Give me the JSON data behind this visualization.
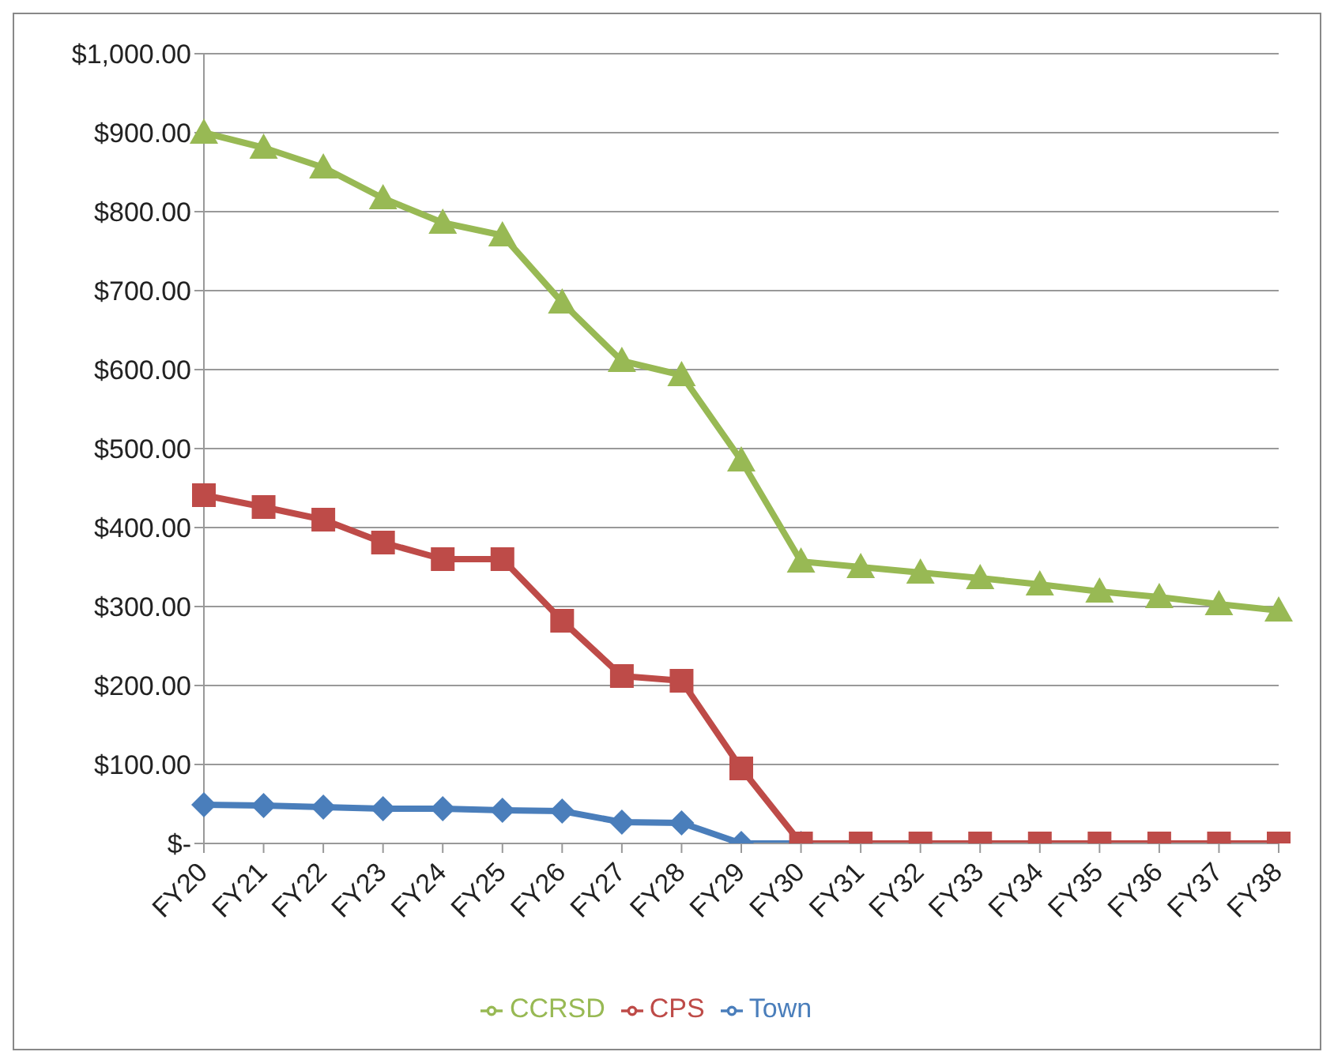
{
  "chart_data": {
    "type": "line",
    "categories": [
      "FY20",
      "FY21",
      "FY22",
      "FY23",
      "FY24",
      "FY25",
      "FY26",
      "FY27",
      "FY28",
      "FY29",
      "FY30",
      "FY31",
      "FY32",
      "FY33",
      "FY34",
      "FY35",
      "FY36",
      "FY37",
      "FY38"
    ],
    "series": [
      {
        "name": "Town",
        "color": "#4a7ebb",
        "marker": "diamond",
        "values": [
          49,
          48,
          46,
          44,
          44,
          42,
          41,
          27,
          26,
          0,
          0,
          null,
          null,
          null,
          null,
          null,
          null,
          null,
          null
        ]
      },
      {
        "name": "CPS",
        "color": "#be4b48",
        "marker": "square",
        "values": [
          441,
          426,
          410,
          381,
          360,
          360,
          282,
          212,
          206,
          95,
          0,
          0,
          0,
          0,
          0,
          0,
          0,
          0,
          0
        ]
      },
      {
        "name": "CCRSD",
        "color": "#98b954",
        "marker": "triangle",
        "values": [
          900,
          881,
          856,
          817,
          786,
          770,
          685,
          611,
          593,
          485,
          357,
          350,
          343,
          336,
          328,
          319,
          312,
          303,
          295
        ]
      }
    ],
    "ylim": [
      0,
      1000
    ],
    "yticks": [
      {
        "value": 0,
        "label": "$-"
      },
      {
        "value": 100,
        "label": "$100.00"
      },
      {
        "value": 200,
        "label": "$200.00"
      },
      {
        "value": 300,
        "label": "$300.00"
      },
      {
        "value": 400,
        "label": "$400.00"
      },
      {
        "value": 500,
        "label": "$500.00"
      },
      {
        "value": 600,
        "label": "$600.00"
      },
      {
        "value": 700,
        "label": "$700.00"
      },
      {
        "value": 800,
        "label": "$800.00"
      },
      {
        "value": 900,
        "label": "$900.00"
      },
      {
        "value": 1000,
        "label": "$1,000.00"
      }
    ],
    "grid": "y",
    "legend": "bottom",
    "line_style": "solid"
  }
}
